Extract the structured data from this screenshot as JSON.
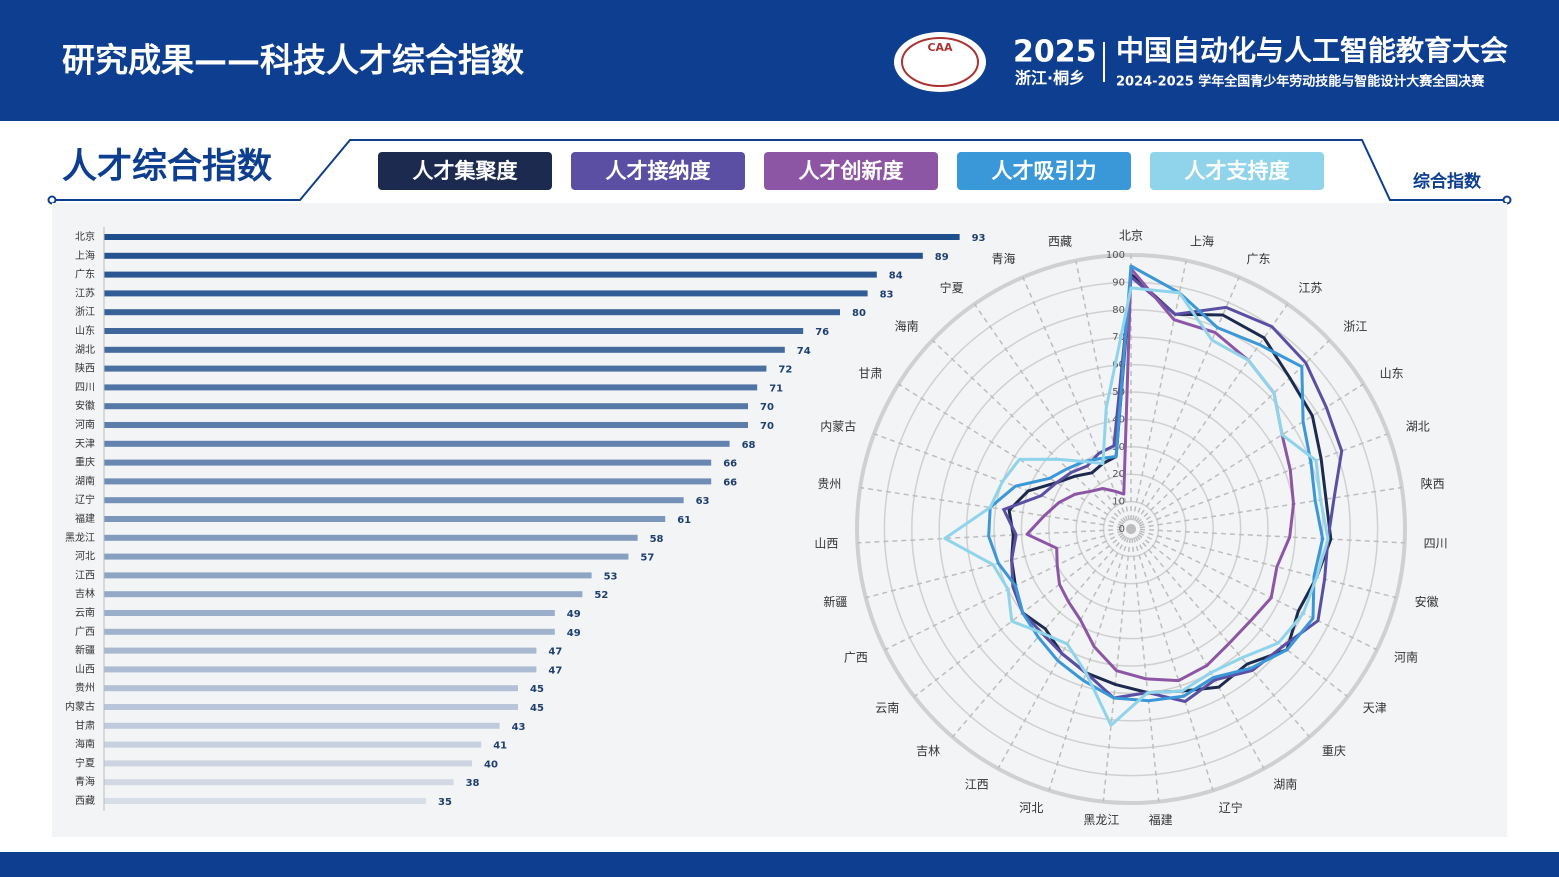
{
  "header": {
    "title": "研究成果——科技人才综合指数",
    "logo_text": "CAA",
    "year": "2025",
    "place": "浙江·桐乡",
    "conference": "中国自动化与人工智能教育大会",
    "subtitle": "2024-2025 学年全国青少年劳动技能与智能设计大赛全国决赛"
  },
  "section": {
    "title": "人才综合指数"
  },
  "chart_data": [
    {
      "type": "hbar",
      "title": "综合指数",
      "categories": [
        "北京",
        "上海",
        "广东",
        "江苏",
        "浙江",
        "山东",
        "湖北",
        "陕西",
        "四川",
        "安徽",
        "河南",
        "天津",
        "重庆",
        "湖南",
        "辽宁",
        "福建",
        "黑龙江",
        "河北",
        "江西",
        "吉林",
        "云南",
        "广西",
        "新疆",
        "山西",
        "贵州",
        "内蒙古",
        "甘肃",
        "海南",
        "宁夏",
        "青海",
        "西藏"
      ],
      "values": [
        93,
        89,
        84,
        83,
        80,
        76,
        74,
        72,
        71,
        70,
        70,
        68,
        66,
        66,
        63,
        61,
        58,
        57,
        53,
        52,
        49,
        49,
        47,
        47,
        45,
        45,
        43,
        41,
        40,
        38,
        35
      ],
      "color_range": [
        "#1f4e8c",
        "#d8dee8"
      ]
    },
    {
      "type": "radar",
      "categories": [
        "北京",
        "上海",
        "广东",
        "江苏",
        "浙江",
        "山东",
        "湖北",
        "陕西",
        "四川",
        "安徽",
        "河南",
        "天津",
        "重庆",
        "湖南",
        "辽宁",
        "福建",
        "黑龙江",
        "河北",
        "江西",
        "吉林",
        "云南",
        "广西",
        "新疆",
        "山西",
        "贵州",
        "内蒙古",
        "甘肃",
        "海南",
        "宁夏",
        "青海",
        "西藏"
      ],
      "rlim": [
        0,
        100
      ],
      "rticks": [
        0,
        10,
        20,
        30,
        40,
        50,
        60,
        70,
        80,
        90,
        100
      ],
      "series": [
        {
          "name": "人才集聚度",
          "color": "#1b2a4e",
          "values": [
            93,
            80,
            85,
            85,
            80,
            78,
            74,
            72,
            73,
            70,
            68,
            72,
            65,
            66,
            62,
            60,
            57,
            55,
            52,
            48,
            50,
            47,
            45,
            43,
            45,
            40,
            32,
            28,
            25,
            26,
            27
          ]
        },
        {
          "name": "人才接纳度",
          "color": "#5a4fa3",
          "values": [
            92,
            80,
            88,
            90,
            88,
            84,
            82,
            75,
            72,
            73,
            76,
            70,
            68,
            63,
            66,
            60,
            62,
            55,
            52,
            50,
            50,
            48,
            45,
            42,
            47,
            35,
            32,
            30,
            28,
            30,
            31
          ]
        },
        {
          "name": "人才创新度",
          "color": "#8d56a5",
          "values": [
            95,
            78,
            78,
            75,
            72,
            65,
            62,
            60,
            58,
            55,
            57,
            55,
            55,
            57,
            58,
            55,
            52,
            45,
            38,
            35,
            33,
            30,
            28,
            38,
            32,
            28,
            24,
            20,
            18,
            15,
            13
          ]
        },
        {
          "name": "人才吸引力",
          "color": "#3a97d8",
          "values": [
            96,
            88,
            80,
            82,
            86,
            74,
            70,
            68,
            70,
            69,
            74,
            72,
            67,
            62,
            64,
            63,
            62,
            58,
            55,
            52,
            50,
            47,
            50,
            52,
            52,
            45,
            35,
            32,
            30,
            28,
            27
          ]
        },
        {
          "name": "人才支持度",
          "color": "#8fd4ea",
          "values": [
            88,
            88,
            75,
            75,
            72,
            65,
            72,
            70,
            72,
            70,
            70,
            68,
            62,
            60,
            62,
            60,
            72,
            55,
            48,
            50,
            55,
            50,
            52,
            68,
            52,
            50,
            48,
            37,
            30,
            26,
            45
          ]
        }
      ]
    }
  ]
}
